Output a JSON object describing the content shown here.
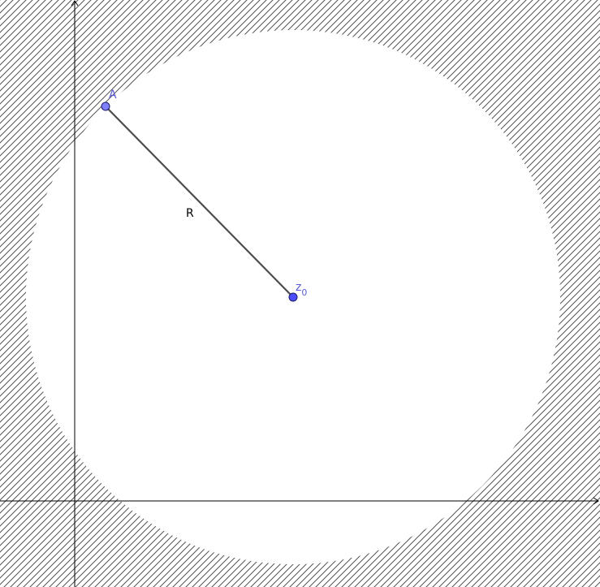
{
  "diagram": {
    "points": {
      "A": {
        "label": "A"
      },
      "z0": {
        "label_main": "z",
        "label_sub": "0"
      }
    },
    "segment": {
      "label": "R"
    },
    "colors": {
      "hatch": "#555555",
      "point_fill": "#4d4dff",
      "point_fill_light": "#7f7fff",
      "point_stroke": "#1a1a66",
      "point_label": "#5b5bd6",
      "segment": "#4d4d4d",
      "axis": "#000000",
      "background": "#ffffff"
    }
  }
}
